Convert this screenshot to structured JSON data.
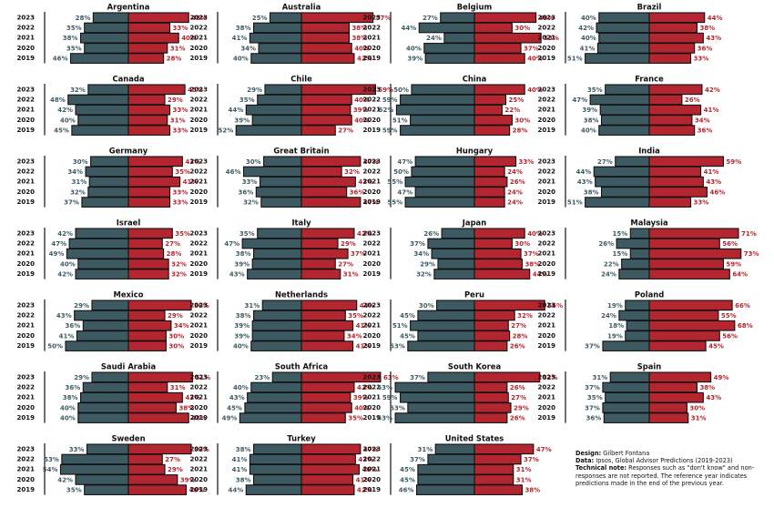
{
  "chart_data": {
    "type": "bar",
    "layout": "small-multiples diverging horizontal bars",
    "years": [
      "2023",
      "2022",
      "2021",
      "2020",
      "2019"
    ],
    "colors": {
      "left": "#3d5a63",
      "right": "#b3262f",
      "left_text": "#3d5a63",
      "right_text": "#b3262f",
      "outline": "#111111"
    },
    "panels": [
      {
        "country": "Argentina",
        "left": [
          28,
          35,
          38,
          35,
          46
        ],
        "right": [
          48,
          33,
          40,
          31,
          28
        ]
      },
      {
        "country": "Australia",
        "left": [
          25,
          38,
          41,
          34,
          40
        ],
        "right": [
          57,
          38,
          38,
          40,
          42
        ]
      },
      {
        "country": "Belgium",
        "left": [
          27,
          44,
          24,
          40,
          39
        ],
        "right": [
          49,
          30,
          53,
          37,
          40
        ]
      },
      {
        "country": "Brazil",
        "left": [
          40,
          42,
          40,
          41,
          51
        ],
        "right": [
          44,
          38,
          43,
          36,
          33
        ]
      },
      {
        "country": "Canada",
        "left": [
          32,
          48,
          42,
          40,
          45
        ],
        "right": [
          45,
          29,
          33,
          31,
          33
        ]
      },
      {
        "country": "Chile",
        "left": [
          29,
          35,
          44,
          39,
          52
        ],
        "right": [
          59,
          40,
          39,
          40,
          27
        ]
      },
      {
        "country": "China",
        "left": [
          50,
          59,
          62,
          51,
          59
        ],
        "right": [
          40,
          25,
          22,
          30,
          28
        ]
      },
      {
        "country": "France",
        "left": [
          35,
          47,
          39,
          38,
          40
        ],
        "right": [
          42,
          26,
          41,
          34,
          36
        ]
      },
      {
        "country": "Germany",
        "left": [
          30,
          34,
          31,
          32,
          37
        ],
        "right": [
          43,
          35,
          41,
          33,
          33
        ]
      },
      {
        "country": "Great Britain",
        "left": [
          30,
          46,
          33,
          36,
          32
        ],
        "right": [
          47,
          32,
          43,
          36,
          47
        ]
      },
      {
        "country": "Hungary",
        "left": [
          47,
          50,
          55,
          47,
          55
        ],
        "right": [
          33,
          24,
          26,
          24,
          24
        ]
      },
      {
        "country": "India",
        "left": [
          27,
          44,
          43,
          38,
          51
        ],
        "right": [
          59,
          41,
          43,
          46,
          33
        ]
      },
      {
        "country": "Israel",
        "left": [
          42,
          47,
          49,
          40,
          42
        ],
        "right": [
          35,
          27,
          28,
          32,
          32
        ]
      },
      {
        "country": "Italy",
        "left": [
          35,
          47,
          38,
          39,
          43
        ],
        "right": [
          42,
          29,
          37,
          27,
          31
        ]
      },
      {
        "country": "Japan",
        "left": [
          26,
          37,
          34,
          29,
          32
        ],
        "right": [
          40,
          30,
          37,
          38,
          44
        ]
      },
      {
        "country": "Malaysia",
        "left": [
          15,
          26,
          15,
          22,
          24
        ],
        "right": [
          71,
          56,
          73,
          59,
          64
        ]
      },
      {
        "country": "Mexico",
        "left": [
          29,
          43,
          36,
          41,
          50
        ],
        "right": [
          50,
          29,
          34,
          30,
          30
        ]
      },
      {
        "country": "Netherlands",
        "left": [
          31,
          38,
          39,
          39,
          40
        ],
        "right": [
          44,
          35,
          41,
          34,
          41
        ]
      },
      {
        "country": "Peru",
        "left": [
          30,
          45,
          51,
          45,
          53
        ],
        "right": [
          56,
          32,
          27,
          28,
          26
        ]
      },
      {
        "country": "Poland",
        "left": [
          19,
          24,
          18,
          19,
          37
        ],
        "right": [
          66,
          55,
          68,
          56,
          45
        ]
      },
      {
        "country": "Saudi Arabia",
        "left": [
          29,
          36,
          38,
          40,
          40
        ],
        "right": [
          51,
          31,
          43,
          38,
          48
        ]
      },
      {
        "country": "South Africa",
        "left": [
          23,
          40,
          43,
          45,
          49
        ],
        "right": [
          63,
          42,
          39,
          40,
          35
        ]
      },
      {
        "country": "South Korea",
        "left": [
          37,
          63,
          59,
          53,
          63
        ],
        "right": [
          52,
          26,
          27,
          29,
          26
        ]
      },
      {
        "country": "Spain",
        "left": [
          31,
          37,
          35,
          37,
          36
        ],
        "right": [
          49,
          38,
          43,
          30,
          31
        ]
      },
      {
        "country": "Sweden",
        "left": [
          33,
          53,
          54,
          42,
          35
        ],
        "right": [
          50,
          27,
          29,
          39,
          46
        ]
      },
      {
        "country": "Turkey",
        "left": [
          38,
          41,
          41,
          38,
          44
        ],
        "right": [
          47,
          43,
          46,
          41,
          42
        ]
      },
      {
        "country": "United States",
        "left": [
          31,
          37,
          45,
          45,
          46
        ],
        "right": [
          47,
          37,
          31,
          31,
          38
        ]
      }
    ]
  },
  "note": {
    "design_label": "Design:",
    "design_value": "Gilbert Fontana",
    "data_label": "Data:",
    "data_value": "Ipsos, Global Advisor Predictions (2019-2023)",
    "technical_label": "Technical note:",
    "technical_value": "Responses such as \"don't know\" and non-responses are not reported. The reference year indicates predictions made in the end of the previous year."
  }
}
